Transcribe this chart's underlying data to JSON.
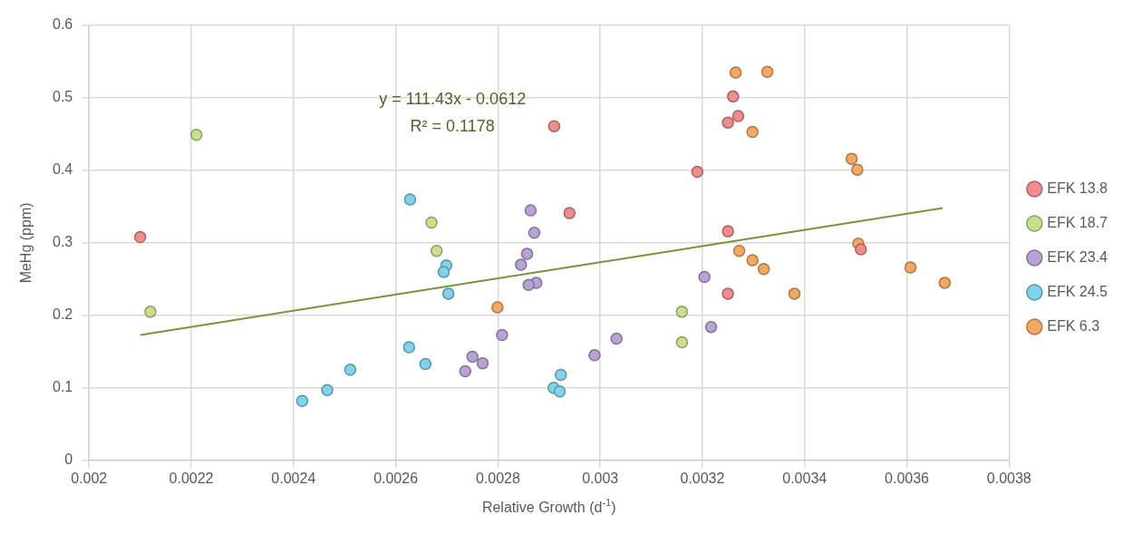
{
  "chart_data": {
    "type": "scatter",
    "xlabel": "Relative Growth (d$^{-1}$)",
    "ylabel": "MeHg (ppm)",
    "xlim": [
      0.002,
      0.0038
    ],
    "xticks": [
      0.002,
      0.0022,
      0.0024,
      0.0026,
      0.0028,
      0.003,
      0.0032,
      0.0034,
      0.0036,
      0.0038
    ],
    "ylim": [
      0,
      0.6
    ],
    "yticks": [
      0,
      0.1,
      0.2,
      0.3,
      0.4,
      0.5,
      0.6
    ],
    "grid": true,
    "legend": "right",
    "marker": "circle",
    "annotations": [
      "y = 111.43x - 0.0612",
      "R² = 0.1178"
    ],
    "series": [
      {
        "name": "EFK 13.8",
        "color": "#f08c8c",
        "x": [
          0.0021,
          0.00291,
          0.00294,
          0.00319,
          0.00326,
          0.00327,
          0.00325,
          0.00325,
          0.00325,
          0.00351
        ],
        "values": [
          0.308,
          0.461,
          0.341,
          0.398,
          0.502,
          0.475,
          0.466,
          0.316,
          0.23,
          0.291
        ]
      },
      {
        "name": "EFK 18.7",
        "color": "#c8e08a",
        "x": [
          0.00221,
          0.00212,
          0.00267,
          0.00268,
          0.00316,
          0.00316
        ],
        "values": [
          0.449,
          0.205,
          0.328,
          0.289,
          0.205,
          0.163
        ]
      },
      {
        "name": "EFK 23.4",
        "color": "#b9a3d6",
        "x": [
          0.002864,
          0.002871,
          0.002857,
          0.002845,
          0.002875,
          0.00286,
          0.002808,
          0.00275,
          0.00277,
          0.002736,
          0.002989,
          0.003032,
          0.003204,
          0.003217
        ],
        "values": [
          0.345,
          0.314,
          0.285,
          0.27,
          0.245,
          0.242,
          0.173,
          0.143,
          0.134,
          0.123,
          0.145,
          0.168,
          0.253,
          0.184
        ]
      },
      {
        "name": "EFK 24.5",
        "color": "#7fd3ea",
        "x": [
          0.002628,
          0.002626,
          0.002658,
          0.002511,
          0.002466,
          0.002417,
          0.002699,
          0.002694,
          0.002703,
          0.002923,
          0.002909,
          0.002921
        ],
        "values": [
          0.36,
          0.156,
          0.133,
          0.125,
          0.097,
          0.082,
          0.269,
          0.26,
          0.23,
          0.118,
          0.1,
          0.095
        ]
      },
      {
        "name": "EFK 6.3",
        "color": "#f5a862",
        "x": [
          0.002799,
          0.003265,
          0.003327,
          0.003298,
          0.003492,
          0.003503,
          0.003272,
          0.003298,
          0.00332,
          0.003505,
          0.003607,
          0.003674,
          0.00338
        ],
        "values": [
          0.211,
          0.535,
          0.536,
          0.453,
          0.416,
          0.401,
          0.289,
          0.276,
          0.264,
          0.299,
          0.266,
          0.245,
          0.23
        ]
      },
      {
        "type": "line",
        "marker": "none",
        "color": "#77933c",
        "x": [
          0.0021,
          0.00367
        ],
        "values": [
          0.173,
          0.348
        ]
      }
    ]
  }
}
